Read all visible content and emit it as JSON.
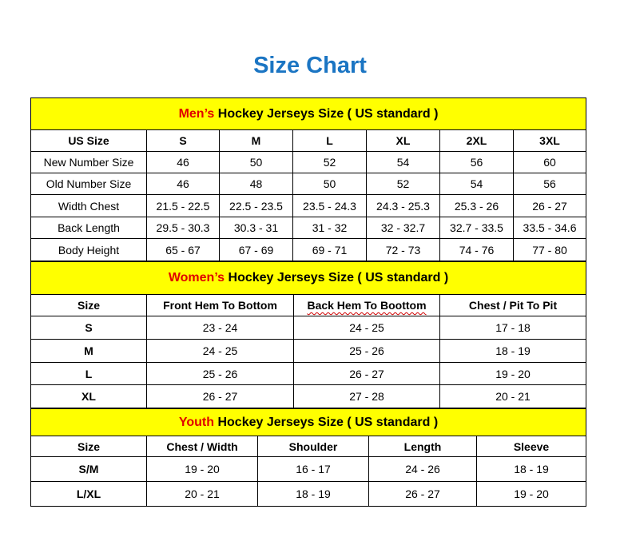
{
  "title": "Size Chart",
  "colors": {
    "title": "#1b75c3",
    "section_band": "#ffff00",
    "section_prefix": "#e00000"
  },
  "mens": {
    "heading_prefix": "Men’s",
    "heading_rest": " Hockey Jerseys Size ( US standard )",
    "headers": [
      "US Size",
      "S",
      "M",
      "L",
      "XL",
      "2XL",
      "3XL"
    ],
    "rows": [
      [
        "New Number Size",
        "46",
        "50",
        "52",
        "54",
        "56",
        "60"
      ],
      [
        "Old Number Size",
        "46",
        "48",
        "50",
        "52",
        "54",
        "56"
      ],
      [
        "Width Chest",
        "21.5 - 22.5",
        "22.5 - 23.5",
        "23.5 - 24.3",
        "24.3 - 25.3",
        "25.3 - 26",
        "26 - 27"
      ],
      [
        "Back Length",
        "29.5 - 30.3",
        "30.3 - 31",
        "31 - 32",
        "32 - 32.7",
        "32.7 - 33.5",
        "33.5 - 34.6"
      ],
      [
        "Body Height",
        "65 - 67",
        "67 - 69",
        "69 - 71",
        "72 - 73",
        "74 - 76",
        "77 - 80"
      ]
    ]
  },
  "womens": {
    "heading_prefix": "Women’s",
    "heading_rest": " Hockey Jerseys Size ( US standard )",
    "headers": [
      "Size",
      "Front Hem To Bottom",
      "Back Hem To Boottom",
      "Chest / Pit To Pit"
    ],
    "rows": [
      [
        "S",
        "23 - 24",
        "24 - 25",
        "17 - 18"
      ],
      [
        "M",
        "24 - 25",
        "25 - 26",
        "18 - 19"
      ],
      [
        "L",
        "25 - 26",
        "26 - 27",
        "19 - 20"
      ],
      [
        "XL",
        "26 - 27",
        "27 - 28",
        "20 - 21"
      ]
    ]
  },
  "youth": {
    "heading_prefix": "Youth",
    "heading_rest": " Hockey Jerseys Size ( US standard )",
    "headers": [
      "Size",
      "Chest / Width",
      "Shoulder",
      "Length",
      "Sleeve"
    ],
    "rows": [
      [
        "S/M",
        "19 - 20",
        "16 - 17",
        "24 - 26",
        "18 - 19"
      ],
      [
        "L/XL",
        "20 - 21",
        "18 - 19",
        "26 - 27",
        "19 - 20"
      ]
    ]
  }
}
